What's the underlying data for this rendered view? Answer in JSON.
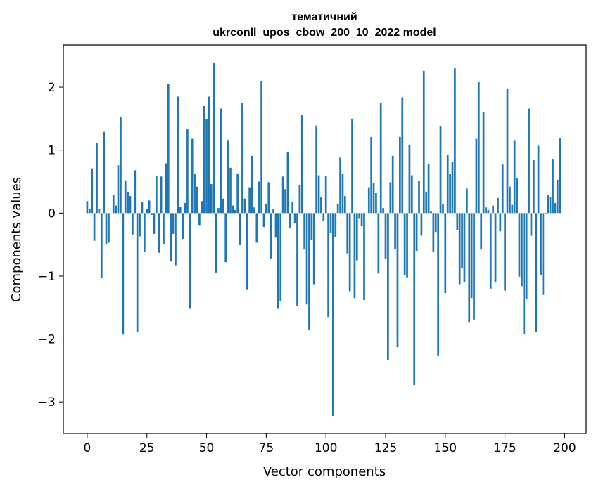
{
  "chart_data": {
    "type": "bar",
    "title_line1": "тематичний",
    "title_line2": "ukrconll_upos_cbow_200_10_2022 model",
    "xlabel": "Vector components",
    "ylabel": "Components values",
    "xlim": [
      -10,
      209
    ],
    "ylim": [
      -3.5,
      2.67
    ],
    "x_ticks": [
      0,
      25,
      50,
      75,
      100,
      125,
      150,
      175,
      200
    ],
    "y_ticks": [
      -3,
      -2,
      -1,
      0,
      1,
      2
    ],
    "y_tick_labels": [
      "−3",
      "−2",
      "−1",
      "0",
      "1",
      "2"
    ],
    "grid": false,
    "bar_color": "#1f77b4",
    "values": [
      0.19,
      0.07,
      0.71,
      -0.44,
      1.11,
      0.06,
      -1.03,
      1.29,
      -0.49,
      -0.47,
      0.0,
      0.29,
      0.12,
      0.76,
      1.53,
      -1.93,
      0.52,
      0.34,
      0.27,
      -0.34,
      0.68,
      -1.89,
      -0.37,
      0.17,
      -0.61,
      0.07,
      0.2,
      -0.03,
      -0.33,
      0.59,
      -0.63,
      0.58,
      -0.5,
      0.79,
      2.05,
      -0.77,
      -0.33,
      -0.83,
      1.85,
      0.1,
      -0.41,
      0.16,
      1.33,
      -1.52,
      1.18,
      0.63,
      0.42,
      -0.19,
      0.19,
      1.7,
      1.49,
      1.85,
      0.46,
      2.39,
      -0.95,
      0.08,
      1.66,
      0.23,
      -0.78,
      1.16,
      0.72,
      0.12,
      0.05,
      0.63,
      -0.51,
      1.75,
      0.23,
      -1.22,
      0.41,
      0.91,
      0.09,
      -0.47,
      0.5,
      2.1,
      -0.22,
      0.15,
      0.49,
      -0.72,
      0.07,
      -0.39,
      -1.52,
      -1.4,
      0.58,
      0.38,
      0.97,
      -0.23,
      0.18,
      -0.16,
      -1.47,
      0.45,
      1.56,
      -0.58,
      -1.45,
      -1.85,
      -0.42,
      -1.13,
      1.39,
      0.6,
      0.26,
      -0.13,
      0.59,
      -1.65,
      -0.32,
      -3.22,
      -0.38,
      0.15,
      0.88,
      0.62,
      0.27,
      -0.64,
      -1.24,
      1.5,
      -1.35,
      -0.75,
      -0.08,
      -0.2,
      -1.38,
      0.0,
      0.41,
      1.21,
      0.48,
      0.32,
      -0.96,
      1.75,
      0.08,
      -0.73,
      -2.33,
      0.49,
      0.91,
      -0.57,
      -2.13,
      1.21,
      1.84,
      -0.99,
      -1.02,
      1.08,
      0.6,
      -2.73,
      -0.6,
      0.51,
      -0.36,
      2.26,
      0.34,
      0.78,
      0.03,
      -0.61,
      -0.3,
      -2.26,
      1.38,
      0.14,
      -1.27,
      0.93,
      0.62,
      0.81,
      2.3,
      -0.27,
      -1.13,
      -0.88,
      -1.09,
      0.39,
      -1.74,
      -1.35,
      -1.69,
      1.18,
      2.08,
      -0.58,
      1.61,
      0.09,
      0.05,
      -1.2,
      0.12,
      -1.1,
      0.24,
      -0.29,
      0.77,
      -1.23,
      1.97,
      0.42,
      0.13,
      1.16,
      0.55,
      -1.01,
      -1.16,
      -1.92,
      -1.37,
      1.66,
      -0.36,
      0.84,
      -1.89,
      1.07,
      -0.98,
      -1.3,
      -0.01,
      0.28,
      0.26,
      0.85,
      0.16,
      0.53,
      1.19
    ]
  }
}
